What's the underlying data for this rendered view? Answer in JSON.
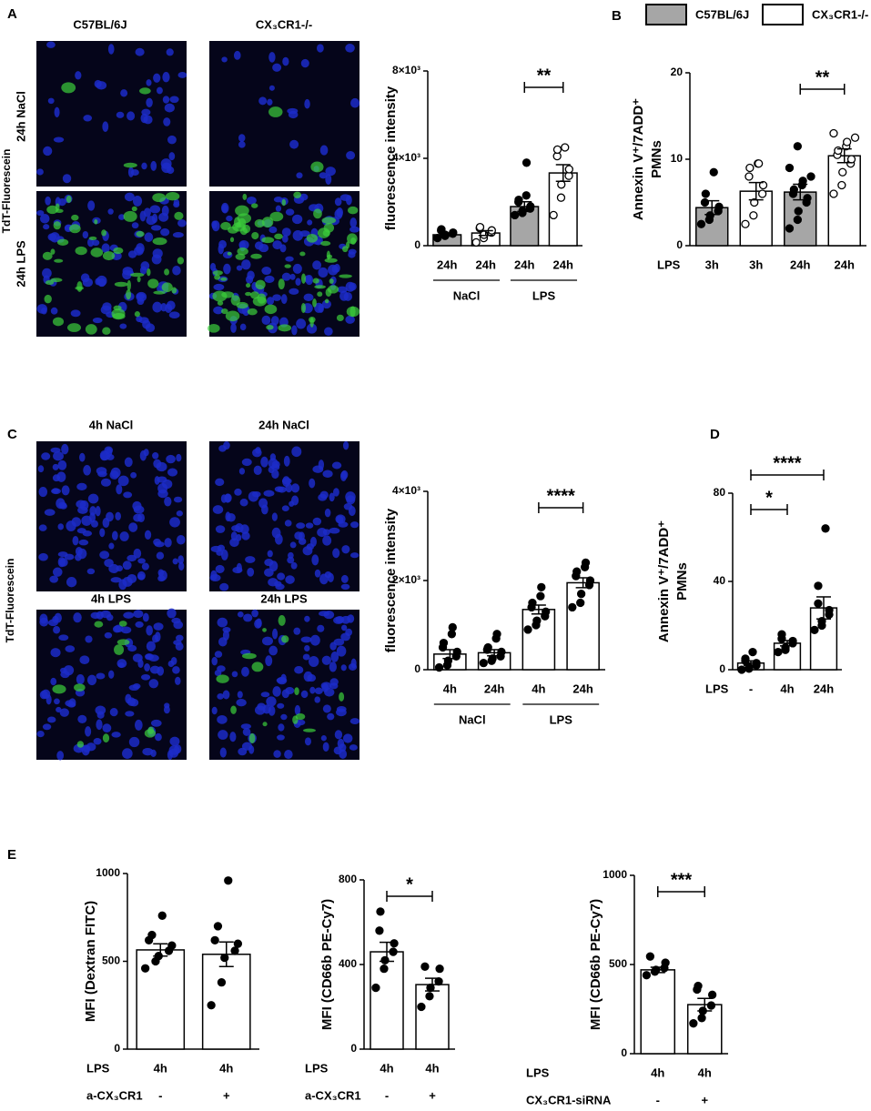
{
  "images": {
    "A": {
      "panel": "A",
      "columns": [
        "C57BL/6J",
        "CX₃CR1-/-"
      ],
      "rows": [
        "24h NaCl",
        "24h LPS"
      ],
      "side": "TdT-Fluorescein"
    },
    "C": {
      "panel": "C",
      "titles": [
        "4h NaCl",
        "24h NaCl",
        "4h LPS",
        "24h LPS"
      ],
      "side": "TdT-Fluorescein"
    }
  },
  "chart_data": [
    {
      "type": "bar",
      "ylabel": [
        "fluorescence intensity"
      ],
      "ylim": [
        0,
        8000
      ],
      "yticks": [
        0,
        {
          "value": 4000,
          "label": "4×10³"
        },
        {
          "value": 8000,
          "label": "8×10³"
        }
      ],
      "categories": [
        "24h",
        "24h",
        "24h",
        "24h"
      ],
      "groups": [
        "NaCl",
        "LPS"
      ],
      "values": [
        500,
        580,
        1790,
        3330
      ],
      "errors": [
        60,
        110,
        220,
        380
      ],
      "colors": [
        "#a6a6a6",
        "#ffffff",
        "#a6a6a6",
        "#ffffff"
      ],
      "markers": [
        "filled",
        "open",
        "filled",
        "open"
      ],
      "points": [
        [
          350,
          450,
          500,
          550,
          600,
          700,
          750
        ],
        [
          150,
          350,
          500,
          600,
          700,
          800,
          850
        ],
        [
          1400,
          1500,
          1600,
          1700,
          1800,
          2000,
          2100,
          2300,
          3800
        ],
        [
          1400,
          2200,
          2800,
          3200,
          3500,
          4100,
          4400,
          4500
        ]
      ],
      "significance": [
        {
          "label": "**",
          "from": 2,
          "to": 3
        }
      ]
    },
    {
      "type": "bar",
      "panel": "B",
      "ylabel": [
        "Annexin V⁺/7ADD⁺",
        "PMNs"
      ],
      "ylim": [
        0,
        20
      ],
      "yticks": [
        0,
        10,
        20
      ],
      "row_label": "LPS",
      "categories": [
        "3h",
        "3h",
        "24h",
        "24h"
      ],
      "legend": [
        {
          "name": "C57BL/6J",
          "color": "#a6a6a6"
        },
        {
          "name": "CX₃CR1-/-",
          "color": "#ffffff"
        }
      ],
      "values": [
        4.4,
        6.3,
        6.2,
        10.4
      ],
      "errors": [
        0.8,
        1.0,
        0.9,
        0.8
      ],
      "colors": [
        "#a6a6a6",
        "#ffffff",
        "#a6a6a6",
        "#ffffff"
      ],
      "markers": [
        "filled",
        "open",
        "filled",
        "open"
      ],
      "points": [
        [
          2.5,
          3,
          3.5,
          4,
          4.5,
          5,
          6,
          8.5
        ],
        [
          2.5,
          3.5,
          5,
          6,
          7,
          8,
          9,
          9.5,
          9.5
        ],
        [
          2,
          3,
          4,
          5,
          5.5,
          6,
          6.5,
          7,
          7.5,
          8,
          9,
          11.5
        ],
        [
          6,
          7,
          8.5,
          9.5,
          10,
          10.5,
          11,
          11.5,
          12,
          12.5,
          13
        ]
      ],
      "significance": [
        {
          "label": "**",
          "from": 2,
          "to": 3
        }
      ]
    },
    {
      "type": "bar",
      "ylabel": [
        "fluorescence intensity"
      ],
      "ylim": [
        0,
        4000
      ],
      "yticks": [
        0,
        {
          "value": 2000,
          "label": "2×10³"
        },
        {
          "value": 4000,
          "label": "4×10³"
        }
      ],
      "categories": [
        "4h",
        "24h",
        "4h",
        "24h"
      ],
      "groups": [
        "NaCl",
        "LPS"
      ],
      "values": [
        350,
        380,
        1350,
        1950
      ],
      "errors": [
        100,
        70,
        100,
        110
      ],
      "color": "#ffffff",
      "points": [
        [
          50,
          100,
          200,
          300,
          400,
          500,
          600,
          800,
          950
        ],
        [
          150,
          200,
          250,
          300,
          400,
          450,
          500,
          700,
          800
        ],
        [
          900,
          1000,
          1100,
          1200,
          1300,
          1400,
          1500,
          1650,
          1850
        ],
        [
          1400,
          1500,
          1700,
          1900,
          2000,
          2100,
          2200,
          2300,
          2400
        ]
      ],
      "significance": [
        {
          "label": "****",
          "from": 2,
          "to": 3
        }
      ]
    },
    {
      "type": "bar",
      "panel": "D",
      "ylabel": [
        "Annexin V⁺/7ADD⁺",
        "PMNs"
      ],
      "ylim": [
        0,
        80
      ],
      "yticks": [
        0,
        40,
        80
      ],
      "row_label": "LPS",
      "categories": [
        "-",
        "4h",
        "24h"
      ],
      "values": [
        3,
        12,
        28
      ],
      "errors": [
        1,
        1.2,
        5
      ],
      "color": "#ffffff",
      "points": [
        [
          0,
          0.5,
          1,
          2,
          3,
          4,
          5,
          8
        ],
        [
          8,
          9,
          10,
          12,
          13,
          14,
          16
        ],
        [
          18,
          20,
          22,
          25,
          27,
          30,
          38,
          64
        ]
      ],
      "significance": [
        {
          "label": "*",
          "from": 0,
          "to": 1
        },
        {
          "label": "****",
          "from": 0,
          "to": 2
        }
      ]
    },
    {
      "type": "bar",
      "panel": "E",
      "ylabel": [
        "MFI (Dextran  FITC)"
      ],
      "ylim": [
        0,
        1000
      ],
      "yticks": [
        0,
        500,
        1000
      ],
      "row_label": "LPS",
      "categories": [
        "4h",
        "4h"
      ],
      "second_row": {
        "label": "a-CX₃CR1",
        "values": [
          "-",
          "+"
        ]
      },
      "values": [
        565,
        540
      ],
      "errors": [
        35,
        70
      ],
      "color": "#ffffff",
      "points": [
        [
          460,
          500,
          530,
          560,
          590,
          620,
          650,
          760
        ],
        [
          250,
          380,
          520,
          560,
          600,
          620,
          700,
          960
        ]
      ]
    },
    {
      "type": "bar",
      "ylabel": [
        "MFI (CD66b PE-Cy7)"
      ],
      "ylim": [
        0,
        800
      ],
      "yticks": [
        0,
        400,
        800
      ],
      "row_label": "LPS",
      "categories": [
        "4h",
        "4h"
      ],
      "second_row": {
        "label": "a-CX₃CR1",
        "values": [
          "-",
          "+"
        ]
      },
      "values": [
        460,
        305
      ],
      "errors": [
        45,
        30
      ],
      "color": "#ffffff",
      "points": [
        [
          290,
          380,
          420,
          460,
          500,
          560,
          650
        ],
        [
          200,
          250,
          290,
          320,
          380,
          390
        ]
      ],
      "significance": [
        {
          "label": "*",
          "from": 0,
          "to": 1
        }
      ]
    },
    {
      "type": "bar",
      "ylabel": [
        "MFI (CD66b PE-Cy7)"
      ],
      "ylim": [
        0,
        1000
      ],
      "yticks": [
        0,
        500,
        1000
      ],
      "row_label": "LPS",
      "categories": [
        "4h",
        "4h"
      ],
      "second_row": {
        "label": "CX₃CR1-siRNA",
        "values": [
          "-",
          "+"
        ]
      },
      "values": [
        470,
        275
      ],
      "errors": [
        15,
        35
      ],
      "color": "#ffffff",
      "points": [
        [
          440,
          460,
          470,
          480,
          510,
          545
        ],
        [
          170,
          200,
          240,
          270,
          330,
          360,
          380
        ]
      ],
      "significance": [
        {
          "label": "***",
          "from": 0,
          "to": 1
        }
      ]
    }
  ]
}
